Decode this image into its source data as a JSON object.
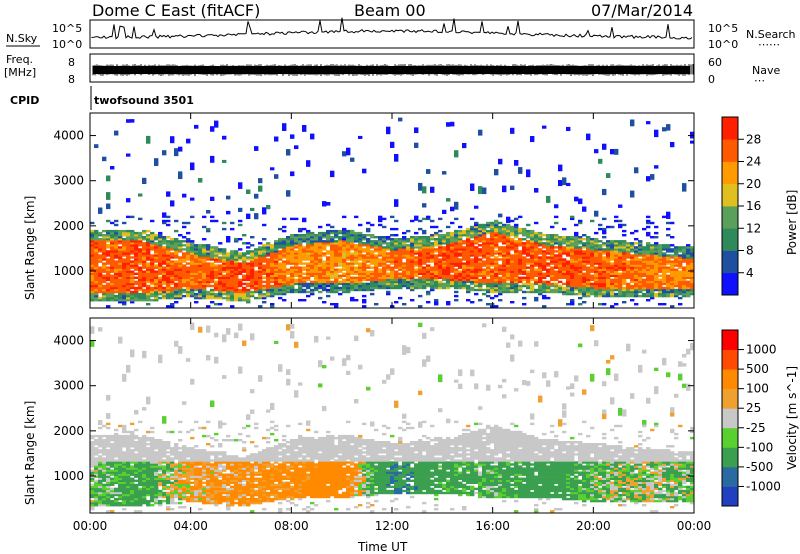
{
  "header": {
    "station": "Dome C East (fitACF)",
    "beam": "Beam 00",
    "date": "07/Mar/2014"
  },
  "strips": {
    "nsky_label": "N.Sky",
    "nsky_top": "10^5",
    "nsky_bottom": "10^0",
    "nsearch_label": "N.Search",
    "nsearch_top": "10^5",
    "nsearch_bottom": "10^0",
    "freq_label": "Freq.",
    "freq_unit": "[MHz]",
    "freq_top": "8",
    "freq_bottom": "8",
    "nave_label": "Nave",
    "nave_top": "60",
    "nave_bottom": "0",
    "cpid_label": "CPID",
    "cpid_value": "twofsound 3501"
  },
  "colors": {
    "power_scale": [
      "#1010ff",
      "#1f4fa0",
      "#2e8a5a",
      "#5aa05a",
      "#e0c020",
      "#ff9a00",
      "#ff5a00",
      "#ff2000",
      "#e80000"
    ],
    "velocity_scale": [
      "#ff0000",
      "#ff4a00",
      "#ff8a00",
      "#f0a030",
      "#c8c8c8",
      "#5ad030",
      "#3aa050",
      "#2a6aa0",
      "#2040c0"
    ],
    "noise_line": "#000000"
  },
  "chart_data": [
    {
      "type": "heatmap",
      "name_label": "Power",
      "ylabel": "Slant Range [km]",
      "xlabel": "",
      "xlim": [
        "00:00",
        "00:00"
      ],
      "ylim": [
        180,
        4500
      ],
      "x_ticks": [
        "00:00",
        "04:00",
        "08:00",
        "12:00",
        "16:00",
        "20:00",
        "00:00"
      ],
      "y_ticks": [
        1000,
        2000,
        3000,
        4000
      ],
      "colorbar": {
        "label": "Power [dB]",
        "ticks": [
          4,
          8,
          12,
          16,
          20,
          24,
          28
        ],
        "range": [
          0,
          32
        ]
      },
      "approx_profile": {
        "hours": [
          0,
          2,
          4,
          6,
          8,
          10,
          12,
          14,
          16,
          18,
          20,
          22,
          24
        ],
        "main_echo_km": [
          [
            300,
            1900
          ],
          [
            300,
            1900
          ],
          [
            400,
            1600
          ],
          [
            300,
            1400
          ],
          [
            500,
            1800
          ],
          [
            500,
            1900
          ],
          [
            600,
            1700
          ],
          [
            600,
            1800
          ],
          [
            500,
            2100
          ],
          [
            500,
            1800
          ],
          [
            400,
            1700
          ],
          [
            400,
            1600
          ],
          [
            400,
            1500
          ]
        ],
        "typical_power_db": [
          26,
          27,
          25,
          28,
          24,
          23,
          25,
          27,
          26,
          27,
          26,
          25,
          24
        ]
      }
    },
    {
      "type": "heatmap",
      "name_label": "Velocity",
      "ylabel": "Slant Range [km]",
      "xlabel": "Time UT",
      "xlim": [
        "00:00",
        "00:00"
      ],
      "ylim": [
        180,
        4500
      ],
      "x_ticks": [
        "00:00",
        "04:00",
        "08:00",
        "12:00",
        "16:00",
        "20:00",
        "00:00"
      ],
      "y_ticks": [
        1000,
        2000,
        3000,
        4000
      ],
      "colorbar": {
        "label": "Velocity [m s^-1]",
        "ticks": [
          "1000",
          "500",
          "100",
          "25",
          "-25",
          "-100",
          "-500",
          "-1000"
        ]
      },
      "approx_profile": {
        "hours": [
          0,
          2,
          4,
          6,
          8,
          10,
          12,
          14,
          16,
          18,
          20,
          22,
          24
        ],
        "typical_velocity_ms": [
          100,
          200,
          -100,
          -150,
          -200,
          -300,
          500,
          200,
          150,
          300,
          100,
          50,
          100
        ]
      }
    }
  ]
}
